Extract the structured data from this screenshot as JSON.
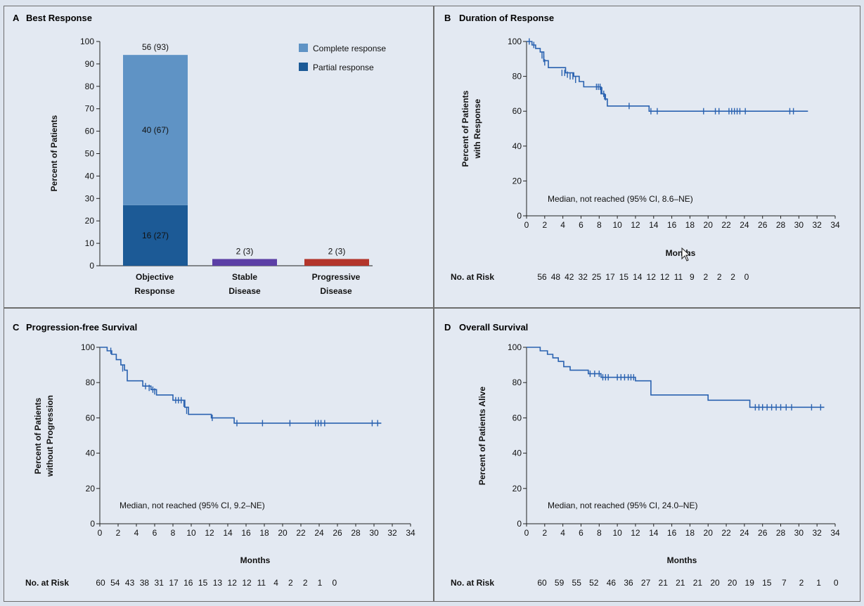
{
  "panels": [
    {
      "letter": "A",
      "title": "Best Response"
    },
    {
      "letter": "B",
      "title": "Duration of Response"
    },
    {
      "letter": "C",
      "title": "Progression-free Survival"
    },
    {
      "letter": "D",
      "title": "Overall Survival"
    }
  ],
  "colors": {
    "complete_response": "#5f93c5",
    "partial_response": "#1c5a96",
    "stable_disease": "#5b3fa6",
    "progressive_disease": "#b3352b",
    "km_line": "#2a62b0"
  },
  "chart_data": [
    {
      "type": "bar",
      "title": "Best Response",
      "ylabel": "Percent of Patients",
      "ylim": [
        0,
        100
      ],
      "yticks": [
        0,
        10,
        20,
        30,
        40,
        50,
        60,
        70,
        80,
        90,
        100
      ],
      "categories": [
        "Objective Response",
        "Stable Disease",
        "Progressive Disease"
      ],
      "category_lines": [
        [
          "Objective",
          "Response"
        ],
        [
          "Stable",
          "Disease"
        ],
        [
          "Progressive",
          "Disease"
        ]
      ],
      "series": [
        {
          "name": "Partial response",
          "values": [
            27,
            3,
            3
          ]
        },
        {
          "name": "Complete response",
          "values": [
            67,
            0,
            0
          ]
        }
      ],
      "data_labels": {
        "objective_total": "56 (93)",
        "complete": "40 (67)",
        "partial": "16 (27)",
        "stable": "2 (3)",
        "progressive": "2 (3)"
      },
      "legend": [
        "Complete response",
        "Partial response"
      ]
    },
    {
      "type": "line",
      "title": "Duration of Response",
      "ylabel_lines": [
        "Percent of Patients",
        "with Response"
      ],
      "xlabel": "Months",
      "xlim": [
        0,
        34
      ],
      "ylim": [
        0,
        100
      ],
      "xticks": [
        0,
        2,
        4,
        6,
        8,
        10,
        12,
        14,
        16,
        18,
        20,
        22,
        24,
        26,
        28,
        30,
        32,
        34
      ],
      "yticks": [
        0,
        20,
        40,
        60,
        80,
        100
      ],
      "steps": [
        [
          0,
          100
        ],
        [
          0.6,
          98
        ],
        [
          1.0,
          96
        ],
        [
          1.5,
          94
        ],
        [
          1.9,
          89
        ],
        [
          2.4,
          85
        ],
        [
          4.3,
          82
        ],
        [
          5.2,
          80
        ],
        [
          5.8,
          77
        ],
        [
          6.3,
          74
        ],
        [
          8.2,
          70
        ],
        [
          8.6,
          67
        ],
        [
          8.9,
          63
        ],
        [
          13.5,
          60
        ],
        [
          31,
          60
        ]
      ],
      "censored": [
        [
          0.3,
          100
        ],
        [
          0.8,
          98
        ],
        [
          1.7,
          92
        ],
        [
          1.9,
          90
        ],
        [
          2.0,
          88
        ],
        [
          3.9,
          82
        ],
        [
          4.2,
          82
        ],
        [
          4.5,
          81
        ],
        [
          4.8,
          80
        ],
        [
          5.1,
          80
        ],
        [
          5.4,
          78
        ],
        [
          7.7,
          74
        ],
        [
          7.9,
          74
        ],
        [
          8.1,
          74
        ],
        [
          8.3,
          72
        ],
        [
          8.5,
          70
        ],
        [
          8.7,
          68
        ],
        [
          11.3,
          63
        ],
        [
          13.7,
          60
        ],
        [
          14.4,
          60
        ],
        [
          19.5,
          60
        ],
        [
          20.8,
          60
        ],
        [
          21.2,
          60
        ],
        [
          22.3,
          60
        ],
        [
          22.6,
          60
        ],
        [
          22.9,
          60
        ],
        [
          23.2,
          60
        ],
        [
          23.5,
          60
        ],
        [
          24.1,
          60
        ],
        [
          29.0,
          60
        ],
        [
          29.4,
          60
        ]
      ],
      "annotation": "Median, not reached (95% CI, 8.6–NE)",
      "risk_label": "No. at Risk",
      "at_risk": [
        56,
        48,
        42,
        32,
        25,
        17,
        15,
        14,
        12,
        12,
        11,
        9,
        2,
        2,
        2,
        0
      ]
    },
    {
      "type": "line",
      "title": "Progression-free Survival",
      "ylabel_lines": [
        "Percent of Patients",
        "without Progression"
      ],
      "xlabel": "Months",
      "xlim": [
        0,
        34
      ],
      "ylim": [
        0,
        100
      ],
      "xticks": [
        0,
        2,
        4,
        6,
        8,
        10,
        12,
        14,
        16,
        18,
        20,
        22,
        24,
        26,
        28,
        30,
        32,
        34
      ],
      "yticks": [
        0,
        20,
        40,
        60,
        80,
        100
      ],
      "steps": [
        [
          0,
          100
        ],
        [
          0.8,
          98
        ],
        [
          1.3,
          96
        ],
        [
          1.8,
          93
        ],
        [
          2.3,
          90
        ],
        [
          2.7,
          87
        ],
        [
          3.0,
          81
        ],
        [
          4.7,
          78
        ],
        [
          5.6,
          76
        ],
        [
          6.2,
          73
        ],
        [
          8.0,
          70
        ],
        [
          9.3,
          66
        ],
        [
          9.7,
          62
        ],
        [
          12.2,
          60
        ],
        [
          14.7,
          57
        ],
        [
          30.8,
          57
        ]
      ],
      "censored": [
        [
          1.2,
          98
        ],
        [
          2.5,
          88
        ],
        [
          5.0,
          78
        ],
        [
          5.4,
          77
        ],
        [
          5.8,
          76
        ],
        [
          6.0,
          75
        ],
        [
          8.3,
          70
        ],
        [
          8.6,
          70
        ],
        [
          8.9,
          70
        ],
        [
          9.2,
          68
        ],
        [
          9.5,
          64
        ],
        [
          12.3,
          60
        ],
        [
          15.0,
          57
        ],
        [
          17.8,
          57
        ],
        [
          20.8,
          57
        ],
        [
          23.6,
          57
        ],
        [
          23.9,
          57
        ],
        [
          24.2,
          57
        ],
        [
          24.6,
          57
        ],
        [
          29.8,
          57
        ],
        [
          30.4,
          57
        ]
      ],
      "annotation": "Median, not reached (95% CI, 9.2–NE)",
      "risk_label": "No. at Risk",
      "at_risk": [
        60,
        54,
        43,
        38,
        31,
        17,
        16,
        15,
        13,
        12,
        12,
        11,
        4,
        2,
        2,
        1,
        0
      ]
    },
    {
      "type": "line",
      "title": "Overall Survival",
      "ylabel": "Percent of Patients Alive",
      "xlabel": "Months",
      "xlim": [
        0,
        34
      ],
      "ylim": [
        0,
        100
      ],
      "xticks": [
        0,
        2,
        4,
        6,
        8,
        10,
        12,
        14,
        16,
        18,
        20,
        22,
        24,
        26,
        28,
        30,
        32,
        34
      ],
      "yticks": [
        0,
        20,
        40,
        60,
        80,
        100
      ],
      "steps": [
        [
          0,
          100
        ],
        [
          1.5,
          98
        ],
        [
          2.3,
          96
        ],
        [
          2.9,
          94
        ],
        [
          3.5,
          92
        ],
        [
          4.1,
          89
        ],
        [
          4.8,
          87
        ],
        [
          6.8,
          85
        ],
        [
          8.2,
          83
        ],
        [
          12.0,
          81
        ],
        [
          13.7,
          73
        ],
        [
          20.0,
          70
        ],
        [
          24.6,
          66
        ],
        [
          32.8,
          66
        ]
      ],
      "censored": [
        [
          7.0,
          85
        ],
        [
          7.5,
          85
        ],
        [
          8.0,
          85
        ],
        [
          8.4,
          83
        ],
        [
          8.7,
          83
        ],
        [
          9.0,
          83
        ],
        [
          10.0,
          83
        ],
        [
          10.4,
          83
        ],
        [
          10.8,
          83
        ],
        [
          11.2,
          83
        ],
        [
          11.5,
          83
        ],
        [
          11.8,
          83
        ],
        [
          25.2,
          66
        ],
        [
          25.6,
          66
        ],
        [
          26.0,
          66
        ],
        [
          26.5,
          66
        ],
        [
          27.0,
          66
        ],
        [
          27.5,
          66
        ],
        [
          28.0,
          66
        ],
        [
          28.6,
          66
        ],
        [
          29.2,
          66
        ],
        [
          31.4,
          66
        ],
        [
          32.4,
          66
        ]
      ],
      "annotation": "Median, not reached (95% CI, 24.0–NE)",
      "risk_label": "No. at Risk",
      "at_risk": [
        60,
        59,
        55,
        52,
        46,
        36,
        27,
        21,
        21,
        21,
        20,
        20,
        19,
        15,
        7,
        2,
        1,
        0
      ]
    }
  ]
}
